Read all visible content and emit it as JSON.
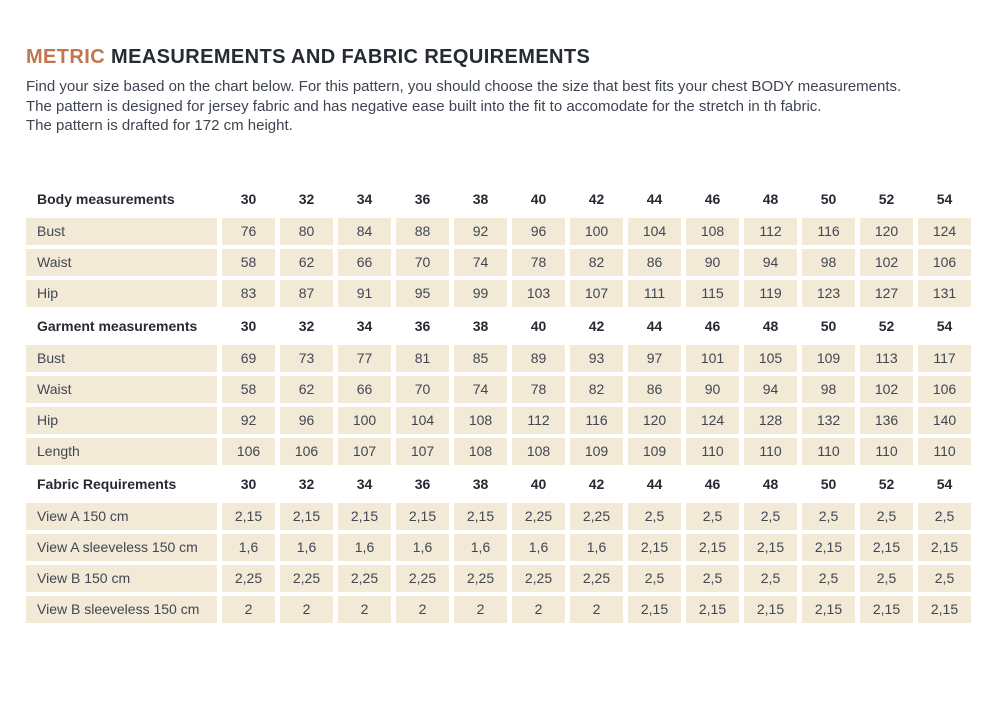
{
  "colors": {
    "accent": "#c0764e",
    "heading_text": "#262b33",
    "body_text": "#3e4450",
    "cell_background": "#f2e9d7"
  },
  "header": {
    "title_accent": "METRIC",
    "title_rest": " MEASUREMENTS AND FABRIC REQUIREMENTS"
  },
  "intro": {
    "lines": [
      "Find your size based on the chart below. For this pattern, you should choose the size that best fits your chest BODY measurements.",
      "The pattern is designed for jersey fabric and has negative ease built into the fit to accomodate for the stretch in th fabric.",
      "The pattern is drafted for 172 cm height."
    ]
  },
  "table": {
    "sizes": [
      "30",
      "32",
      "34",
      "36",
      "38",
      "40",
      "42",
      "44",
      "46",
      "48",
      "50",
      "52",
      "54"
    ],
    "sections": [
      {
        "header": "Body measurements",
        "rows": [
          {
            "label": "Bust",
            "values": [
              "76",
              "80",
              "84",
              "88",
              "92",
              "96",
              "100",
              "104",
              "108",
              "112",
              "116",
              "120",
              "124"
            ]
          },
          {
            "label": "Waist",
            "values": [
              "58",
              "62",
              "66",
              "70",
              "74",
              "78",
              "82",
              "86",
              "90",
              "94",
              "98",
              "102",
              "106"
            ]
          },
          {
            "label": "Hip",
            "values": [
              "83",
              "87",
              "91",
              "95",
              "99",
              "103",
              "107",
              "111",
              "115",
              "119",
              "123",
              "127",
              "131"
            ]
          }
        ]
      },
      {
        "header": "Garment measurements",
        "rows": [
          {
            "label": "Bust",
            "values": [
              "69",
              "73",
              "77",
              "81",
              "85",
              "89",
              "93",
              "97",
              "101",
              "105",
              "109",
              "113",
              "117"
            ]
          },
          {
            "label": "Waist",
            "values": [
              "58",
              "62",
              "66",
              "70",
              "74",
              "78",
              "82",
              "86",
              "90",
              "94",
              "98",
              "102",
              "106"
            ]
          },
          {
            "label": "Hip",
            "values": [
              "92",
              "96",
              "100",
              "104",
              "108",
              "112",
              "116",
              "120",
              "124",
              "128",
              "132",
              "136",
              "140"
            ]
          },
          {
            "label": "Length",
            "values": [
              "106",
              "106",
              "107",
              "107",
              "108",
              "108",
              "109",
              "109",
              "110",
              "110",
              "110",
              "110",
              "110"
            ]
          }
        ]
      },
      {
        "header": "Fabric Requirements",
        "rows": [
          {
            "label": "View A 150 cm",
            "values": [
              "2,15",
              "2,15",
              "2,15",
              "2,15",
              "2,15",
              "2,25",
              "2,25",
              "2,5",
              "2,5",
              "2,5",
              "2,5",
              "2,5",
              "2,5"
            ]
          },
          {
            "label": "View A sleeveless 150 cm",
            "values": [
              "1,6",
              "1,6",
              "1,6",
              "1,6",
              "1,6",
              "1,6",
              "1,6",
              "2,15",
              "2,15",
              "2,15",
              "2,15",
              "2,15",
              "2,15"
            ]
          },
          {
            "label": "View B 150 cm",
            "values": [
              "2,25",
              "2,25",
              "2,25",
              "2,25",
              "2,25",
              "2,25",
              "2,25",
              "2,5",
              "2,5",
              "2,5",
              "2,5",
              "2,5",
              "2,5"
            ]
          },
          {
            "label": "View B sleeveless 150 cm",
            "values": [
              "2",
              "2",
              "2",
              "2",
              "2",
              "2",
              "2",
              "2,15",
              "2,15",
              "2,15",
              "2,15",
              "2,15",
              "2,15"
            ]
          }
        ]
      }
    ]
  }
}
